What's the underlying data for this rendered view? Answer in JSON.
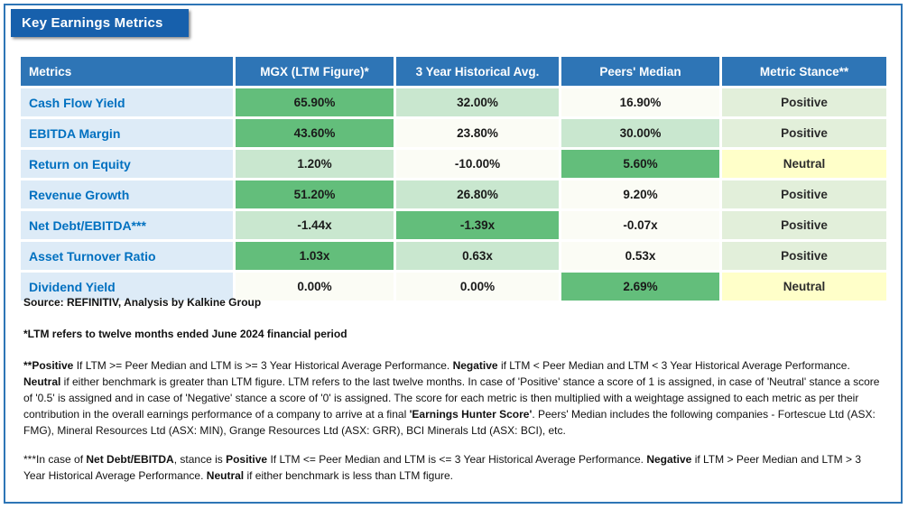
{
  "title": "Key Earnings Metrics",
  "colors": {
    "banner_bg": "#1760AC",
    "frame_border": "#2E75B6",
    "header_bg": "#2E75B6",
    "header_text": "#FFFFFF",
    "metric_col_bg": "#DDEBF7",
    "metric_text": "#0070C0",
    "green_strong": "#63BE7B",
    "green_light": "#C9E7CF",
    "cell_plain": "#FBFCF5",
    "stance_positive_bg": "#E2EFDA",
    "stance_neutral_bg": "#FFFFC9"
  },
  "table": {
    "headers": [
      "Metrics",
      "MGX (LTM Figure)*",
      "3 Year Historical Avg.",
      "Peers' Median",
      "Metric Stance**"
    ],
    "rows": [
      {
        "metric": "Cash Flow Yield",
        "mgx": {
          "v": "65.90%",
          "shade": "strong"
        },
        "hist": {
          "v": "32.00%",
          "shade": "light"
        },
        "peers": {
          "v": "16.90%",
          "shade": "none"
        },
        "stance": "Positive"
      },
      {
        "metric": "EBITDA Margin",
        "mgx": {
          "v": "43.60%",
          "shade": "strong"
        },
        "hist": {
          "v": "23.80%",
          "shade": "none"
        },
        "peers": {
          "v": "30.00%",
          "shade": "light"
        },
        "stance": "Positive"
      },
      {
        "metric": "Return on Equity",
        "mgx": {
          "v": "1.20%",
          "shade": "light"
        },
        "hist": {
          "v": "-10.00%",
          "shade": "none"
        },
        "peers": {
          "v": "5.60%",
          "shade": "strong"
        },
        "stance": "Neutral"
      },
      {
        "metric": "Revenue Growth",
        "mgx": {
          "v": "51.20%",
          "shade": "strong"
        },
        "hist": {
          "v": "26.80%",
          "shade": "light"
        },
        "peers": {
          "v": "9.20%",
          "shade": "none"
        },
        "stance": "Positive"
      },
      {
        "metric": "Net Debt/EBITDA***",
        "mgx": {
          "v": "-1.44x",
          "shade": "light"
        },
        "hist": {
          "v": "-1.39x",
          "shade": "strong"
        },
        "peers": {
          "v": "-0.07x",
          "shade": "none"
        },
        "stance": "Positive"
      },
      {
        "metric": "Asset Turnover Ratio",
        "mgx": {
          "v": "1.03x",
          "shade": "strong"
        },
        "hist": {
          "v": "0.63x",
          "shade": "light"
        },
        "peers": {
          "v": "0.53x",
          "shade": "none"
        },
        "stance": "Positive"
      },
      {
        "metric": "Dividend Yield",
        "mgx": {
          "v": "0.00%",
          "shade": "none"
        },
        "hist": {
          "v": "0.00%",
          "shade": "none"
        },
        "peers": {
          "v": "2.69%",
          "shade": "strong"
        },
        "stance": "Neutral"
      }
    ]
  },
  "footnotes": {
    "source": "Source: REFINITIV, Analysis by Kalkine Group",
    "ltm": "*LTM refers to twelve months ended June 2024 financial period",
    "para1": [
      {
        "t": "**Positive",
        "b": true
      },
      {
        "t": " If LTM >= Peer Median and LTM is >= 3 Year Historical Average Performance. ",
        "b": false
      },
      {
        "t": "Negative",
        "b": true
      },
      {
        "t": " if LTM < Peer Median and LTM < 3 Year Historical Average Performance. ",
        "b": false
      },
      {
        "t": "Neutral",
        "b": true
      },
      {
        "t": " if either benchmark is greater than LTM figure. LTM refers to the last twelve months. In case of 'Positive' stance a score of 1 is assigned, in case of 'Neutral' stance a score of '0.5' is assigned and in case of 'Negative' stance a score of '0' is assigned. The score for each metric is then multiplied with a weightage assigned to each metric as per their contribution in the overall earnings performance of a company to arrive at a final ",
        "b": false
      },
      {
        "t": "'Earnings Hunter Score'",
        "b": true
      },
      {
        "t": ". Peers' Median includes the following companies - Fortescue Ltd (ASX: FMG), Mineral Resources Ltd (ASX: MIN), Grange Resources Ltd (ASX: GRR), BCI Minerals Ltd (ASX: BCI), etc.",
        "b": false
      }
    ],
    "para2": [
      {
        "t": "***In case of ",
        "b": false
      },
      {
        "t": "Net Debt/EBITDA",
        "b": true
      },
      {
        "t": ", stance is ",
        "b": false
      },
      {
        "t": "Positive",
        "b": true
      },
      {
        "t": " If LTM <= Peer Median and LTM is <= 3 Year Historical Average Performance. ",
        "b": false
      },
      {
        "t": "Negative",
        "b": true
      },
      {
        "t": " if LTM > Peer Median and LTM > 3 Year Historical Average Performance. ",
        "b": false
      },
      {
        "t": "Neutral",
        "b": true
      },
      {
        "t": " if either benchmark is less than LTM figure.",
        "b": false
      }
    ]
  }
}
